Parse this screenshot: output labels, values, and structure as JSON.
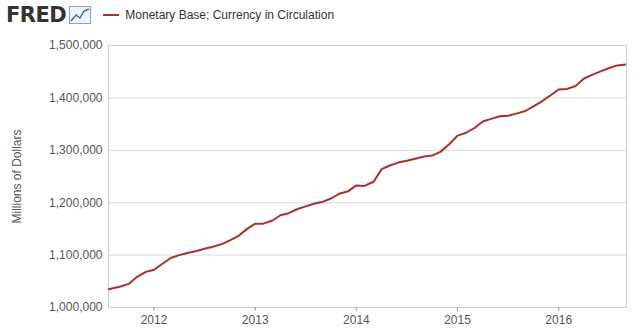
{
  "chart_data": {
    "type": "line",
    "source_logo": "FRED",
    "ylabel": "Millions of Dollars",
    "legend": "top-left",
    "grid": true,
    "xlim": [
      2011.55,
      2016.67
    ],
    "xticks": [
      2012,
      2013,
      2014,
      2015,
      2016
    ],
    "ylim": [
      1000000,
      1500000
    ],
    "yticks": [
      {
        "value": 1000000,
        "label": "1,000,000"
      },
      {
        "value": 1100000,
        "label": "1,100,000"
      },
      {
        "value": 1200000,
        "label": "1,200,000"
      },
      {
        "value": 1300000,
        "label": "1,300,000"
      },
      {
        "value": 1400000,
        "label": "1,400,000"
      },
      {
        "value": 1500000,
        "label": "1,500,000"
      }
    ],
    "x": [
      2011.55,
      2011.67,
      2011.75,
      2011.83,
      2011.92,
      2012.0,
      2012.08,
      2012.17,
      2012.25,
      2012.33,
      2012.42,
      2012.5,
      2012.58,
      2012.67,
      2012.75,
      2012.83,
      2012.92,
      2013.0,
      2013.08,
      2013.17,
      2013.25,
      2013.33,
      2013.42,
      2013.5,
      2013.58,
      2013.67,
      2013.75,
      2013.83,
      2013.92,
      2014.0,
      2014.08,
      2014.17,
      2014.25,
      2014.33,
      2014.42,
      2014.5,
      2014.58,
      2014.67,
      2014.75,
      2014.83,
      2014.92,
      2015.0,
      2015.08,
      2015.17,
      2015.25,
      2015.33,
      2015.42,
      2015.5,
      2015.58,
      2015.67,
      2015.75,
      2015.83,
      2015.92,
      2016.0,
      2016.08,
      2016.17,
      2016.25,
      2016.33,
      2016.42,
      2016.5,
      2016.58,
      2016.67
    ],
    "series": [
      {
        "name": "Monetary Base; Currency in Circulation",
        "color": "#a8312c",
        "values": [
          1035000,
          1040000,
          1045000,
          1058000,
          1068000,
          1072000,
          1083000,
          1095000,
          1100000,
          1104000,
          1108000,
          1112000,
          1116000,
          1121000,
          1128000,
          1136000,
          1150000,
          1160000,
          1160000,
          1166000,
          1176000,
          1180000,
          1188000,
          1193000,
          1198000,
          1202000,
          1208000,
          1217000,
          1222000,
          1233000,
          1232000,
          1240000,
          1264000,
          1271000,
          1277000,
          1280000,
          1284000,
          1288000,
          1290000,
          1297000,
          1312000,
          1328000,
          1333000,
          1343000,
          1355000,
          1360000,
          1365000,
          1366000,
          1370000,
          1375000,
          1384000,
          1393000,
          1405000,
          1416000,
          1417000,
          1423000,
          1437000,
          1444000,
          1451000,
          1457000,
          1462000,
          1464000
        ]
      }
    ]
  }
}
